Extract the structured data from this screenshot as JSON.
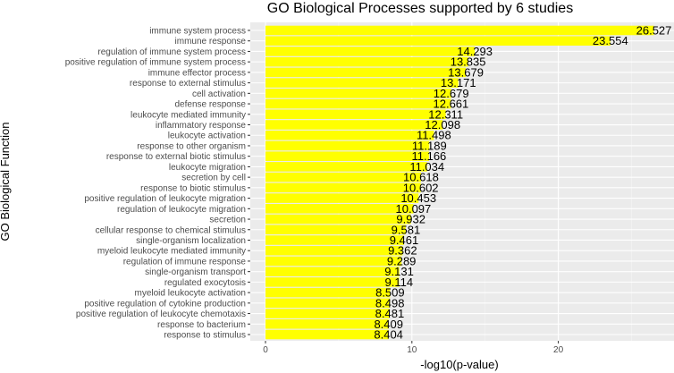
{
  "chart_data": {
    "type": "bar",
    "orientation": "horizontal",
    "title": "GO Biological Processes supported by 6 studies",
    "xlabel": "-log10(p-value)",
    "ylabel": "GO Biological Function",
    "xlim": [
      0,
      27.9
    ],
    "xticks": [
      0,
      10,
      20
    ],
    "grid": true,
    "bar_color": "#ffff00",
    "panel_color": "#ebebeb",
    "categories": [
      "immune system process",
      "immune response",
      "regulation of immune system process",
      "positive regulation of immune system process",
      "immune effector process",
      "response to external stimulus",
      "cell activation",
      "defense response",
      "leukocyte mediated immunity",
      "inflammatory response",
      "leukocyte activation",
      "response to other organism",
      "response to external biotic stimulus",
      "leukocyte migration",
      "secretion by cell",
      "response to biotic stimulus",
      "positive regulation of leukocyte migration",
      "regulation of leukocyte migration",
      "secretion",
      "cellular response to chemical stimulus",
      "single-organism localization",
      "myeloid leukocyte mediated immunity",
      "regulation of immune response",
      "single-organism transport",
      "regulated exocytosis",
      "myeloid leukocyte activation",
      "positive regulation of cytokine production",
      "positive regulation of leukocyte chemotaxis",
      "response to bacterium",
      "response to stimulus"
    ],
    "values": [
      26.527,
      23.554,
      14.293,
      13.835,
      13.679,
      13.171,
      12.679,
      12.661,
      12.311,
      12.098,
      11.498,
      11.189,
      11.166,
      11.034,
      10.618,
      10.602,
      10.453,
      10.097,
      9.932,
      9.581,
      9.461,
      9.362,
      9.289,
      9.131,
      9.114,
      8.509,
      8.498,
      8.481,
      8.409,
      8.404
    ]
  }
}
